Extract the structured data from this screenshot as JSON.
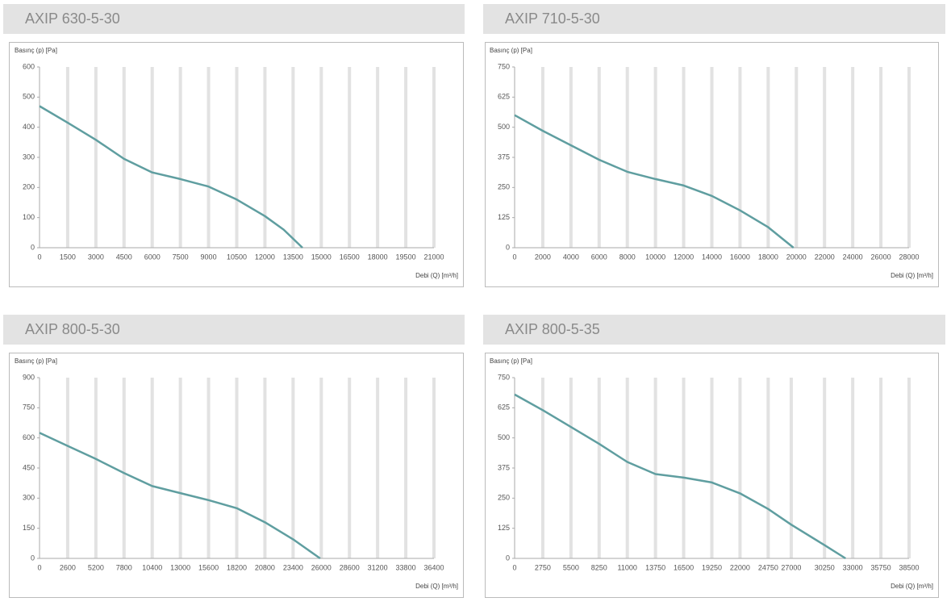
{
  "chart_data": [
    {
      "type": "line",
      "title": "AXIP 630-5-30",
      "y_label": "Basınç (p) [Pa]",
      "x_label": "Debi (Q) [m³/h]",
      "x": [
        0,
        1500,
        3000,
        4500,
        6000,
        7500,
        9000,
        10500,
        12000,
        13000,
        14000
      ],
      "values": [
        470,
        415,
        358,
        295,
        250,
        228,
        203,
        160,
        105,
        60,
        0
      ],
      "color": "#5f9ea0",
      "grid": true,
      "xlim": [
        0,
        21000
      ],
      "xticks": [
        0,
        1500,
        3000,
        4500,
        6000,
        7500,
        9000,
        10500,
        12000,
        13500,
        15000,
        16500,
        18000,
        19500,
        21000
      ],
      "ylim": [
        0,
        600
      ],
      "yticks": [
        0,
        100,
        200,
        300,
        400,
        500,
        600
      ]
    },
    {
      "type": "line",
      "title": "AXIP 710-5-30",
      "y_label": "Basınç (p) [Pa]",
      "x_label": "Debi (Q) [m³/h]",
      "x": [
        0,
        2000,
        4000,
        6000,
        8000,
        10000,
        12000,
        14000,
        16000,
        18000,
        19800
      ],
      "values": [
        550,
        485,
        425,
        365,
        315,
        285,
        258,
        215,
        155,
        85,
        0
      ],
      "color": "#5f9ea0",
      "grid": true,
      "xlim": [
        0,
        28000
      ],
      "xticks": [
        0,
        2000,
        4000,
        6000,
        8000,
        10000,
        12000,
        14000,
        16000,
        18000,
        20000,
        22000,
        24000,
        26000,
        28000
      ],
      "ylim": [
        0,
        750
      ],
      "yticks": [
        0,
        125,
        250,
        375,
        500,
        625,
        750
      ]
    },
    {
      "type": "line",
      "title": "AXIP 800-5-30",
      "y_label": "Basınç (p) [Pa]",
      "x_label": "Debi (Q) [m³/h]",
      "x": [
        0,
        2600,
        5200,
        7800,
        10400,
        13000,
        15600,
        18200,
        20800,
        23400,
        25900
      ],
      "values": [
        625,
        560,
        495,
        425,
        360,
        325,
        290,
        250,
        180,
        95,
        0
      ],
      "color": "#5f9ea0",
      "grid": true,
      "xlim": [
        0,
        36400
      ],
      "xticks": [
        0,
        2600,
        5200,
        7800,
        10400,
        13000,
        15600,
        18200,
        20800,
        23400,
        26000,
        28600,
        31200,
        33800,
        36400
      ],
      "ylim": [
        0,
        900
      ],
      "yticks": [
        0,
        150,
        300,
        450,
        600,
        750,
        900
      ]
    },
    {
      "type": "line",
      "title": "AXIP 800-5-35",
      "y_label": "Basınç (p) [Pa]",
      "x_label": "Debi (Q) [m³/h]",
      "x": [
        0,
        2750,
        5500,
        8250,
        11000,
        13750,
        16500,
        19250,
        22000,
        24750,
        27000,
        30250,
        32300
      ],
      "values": [
        680,
        615,
        545,
        475,
        400,
        350,
        335,
        315,
        270,
        205,
        140,
        55,
        0
      ],
      "color": "#5f9ea0",
      "grid": true,
      "xlim": [
        0,
        38500
      ],
      "xticks": [
        0,
        2750,
        5500,
        8250,
        11000,
        13750,
        16500,
        19250,
        22000,
        24750,
        27000,
        30250,
        33000,
        35750,
        38500
      ],
      "ylim": [
        0,
        750
      ],
      "yticks": [
        0,
        125,
        250,
        375,
        500,
        625,
        750
      ]
    }
  ]
}
